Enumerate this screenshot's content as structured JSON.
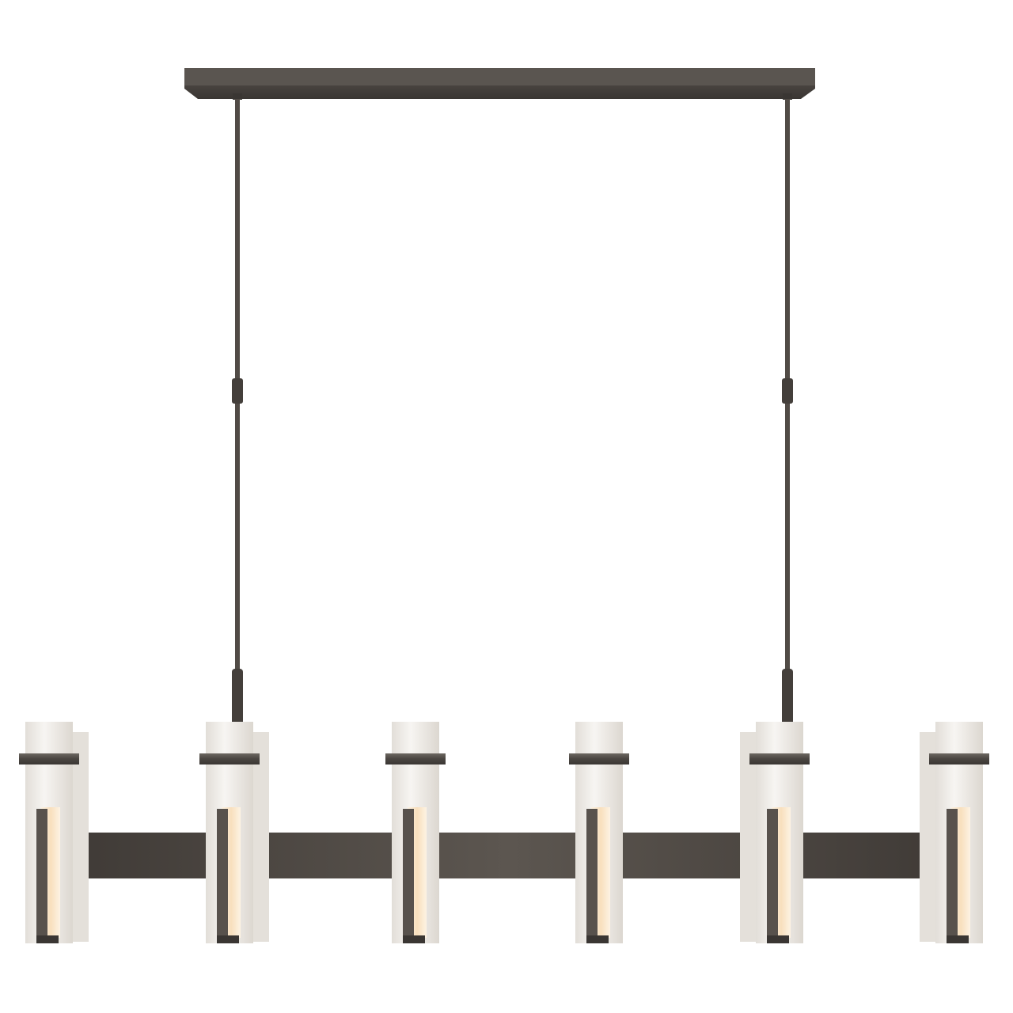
{
  "image": {
    "subject": "linear-chandelier",
    "lamp_count": 6,
    "colors": {
      "background": "#ffffff",
      "metal": "#4a4541",
      "metal_light": "#6d6761",
      "metal_dark": "#2f2b28",
      "glass": "#f3f1ee",
      "glass_shadow": "#d9d5cf",
      "glow": "#fbe9d0"
    }
  }
}
